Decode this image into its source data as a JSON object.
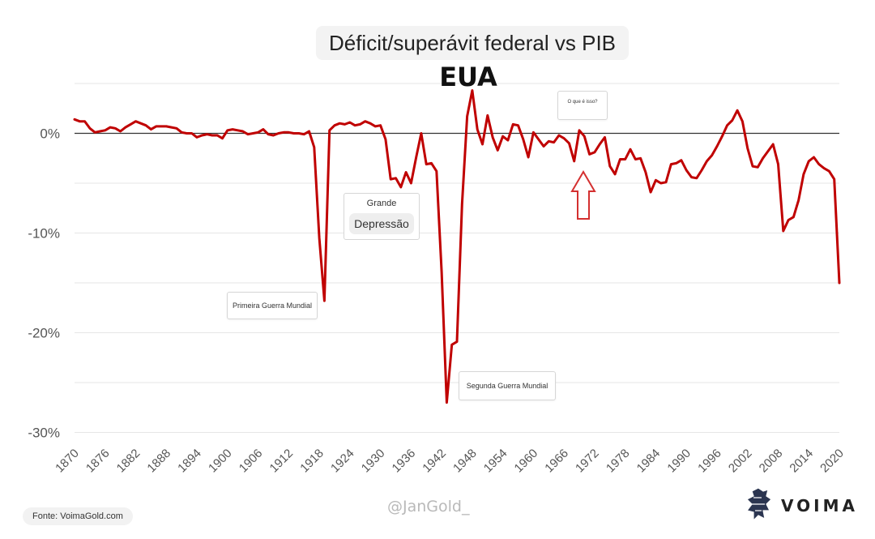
{
  "chart_data": {
    "type": "line",
    "title": "Déficit/superávit federal vs PIB",
    "subtitle": "EUA",
    "xlim": [
      1870,
      2020
    ],
    "ylim": [
      -30,
      5
    ],
    "y_ticks": [
      0,
      -10,
      -20,
      -30
    ],
    "y_tick_labels": [
      "0%",
      "-10%",
      "-20%",
      "-30%"
    ],
    "x_ticks": [
      1870,
      1876,
      1882,
      1888,
      1894,
      1900,
      1906,
      1912,
      1918,
      1924,
      1930,
      1936,
      1942,
      1948,
      1954,
      1960,
      1966,
      1972,
      1978,
      1984,
      1990,
      1996,
      2002,
      2008,
      2014,
      2020
    ],
    "x_tick_labels": [
      "1870",
      "1876",
      "1882",
      "1888",
      "1894",
      "1900",
      "1906",
      "1912",
      "1918",
      "1924",
      "1930",
      "1936",
      "1942",
      "1948",
      "1954",
      "1960",
      "1966",
      "1972",
      "1978",
      "1984",
      "1990",
      "1996",
      "2002",
      "2008",
      "2014",
      "2020"
    ],
    "grid": "horizontal",
    "line_color": "#c00000",
    "series": [
      {
        "x": [
          1870,
          1871,
          1872,
          1873,
          1874,
          1875,
          1876,
          1877,
          1878,
          1879,
          1880,
          1881,
          1882,
          1883,
          1884,
          1885,
          1886,
          1887,
          1888,
          1889,
          1890,
          1891,
          1892,
          1893,
          1894,
          1895,
          1896,
          1897,
          1898,
          1899,
          1900,
          1901,
          1902,
          1903,
          1904,
          1905,
          1906,
          1907,
          1908,
          1909,
          1910,
          1911,
          1912,
          1913,
          1914,
          1915,
          1916,
          1917,
          1918,
          1919,
          1920,
          1921,
          1922,
          1923,
          1924,
          1925,
          1926,
          1927,
          1928,
          1929,
          1930,
          1931,
          1932,
          1933,
          1934,
          1935,
          1936,
          1937,
          1938,
          1939,
          1940,
          1941,
          1942,
          1943,
          1944,
          1945,
          1946,
          1947,
          1948,
          1949,
          1950,
          1951,
          1952,
          1953,
          1954,
          1955,
          1956,
          1957,
          1958,
          1959,
          1960,
          1961,
          1962,
          1963,
          1964,
          1965,
          1966,
          1967,
          1968,
          1969,
          1970,
          1971,
          1972,
          1973,
          1974,
          1975,
          1976,
          1977,
          1978,
          1979,
          1980,
          1981,
          1982,
          1983,
          1984,
          1985,
          1986,
          1987,
          1988,
          1989,
          1990,
          1991,
          1992,
          1993,
          1994,
          1995,
          1996,
          1997,
          1998,
          1999,
          2000,
          2001,
          2002,
          2003,
          2004,
          2005,
          2006,
          2007,
          2008,
          2009,
          2010,
          2011,
          2012,
          2013,
          2014,
          2015,
          2016,
          2017,
          2018,
          2019,
          2020
        ],
        "values": [
          1.4,
          1.2,
          1.2,
          0.5,
          0.1,
          0.2,
          0.3,
          0.6,
          0.5,
          0.2,
          0.6,
          0.9,
          1.2,
          1.0,
          0.8,
          0.4,
          0.7,
          0.7,
          0.7,
          0.6,
          0.5,
          0.1,
          0.0,
          0.0,
          -0.4,
          -0.2,
          -0.1,
          -0.2,
          -0.2,
          -0.5,
          0.3,
          0.4,
          0.3,
          0.2,
          -0.1,
          0.0,
          0.1,
          0.4,
          -0.1,
          -0.2,
          0.0,
          0.1,
          0.1,
          0.0,
          0.0,
          -0.1,
          0.2,
          -1.4,
          -10.5,
          -16.8,
          0.3,
          0.8,
          1.0,
          0.9,
          1.1,
          0.8,
          0.9,
          1.2,
          1.0,
          0.7,
          0.8,
          -0.6,
          -4.6,
          -4.5,
          -5.4,
          -3.9,
          -5.0,
          -2.4,
          0.0,
          -3.1,
          -3.0,
          -3.8,
          -13.9,
          -27.0,
          -21.2,
          -20.9,
          -7.1,
          1.7,
          4.3,
          0.4,
          -1.1,
          1.8,
          -0.4,
          -1.7,
          -0.3,
          -0.7,
          0.9,
          0.8,
          -0.6,
          -2.4,
          0.1,
          -0.6,
          -1.3,
          -0.8,
          -0.9,
          -0.2,
          -0.5,
          -1.0,
          -2.8,
          0.3,
          -0.3,
          -2.1,
          -1.9,
          -1.1,
          -0.4,
          -3.3,
          -4.1,
          -2.6,
          -2.6,
          -1.6,
          -2.6,
          -2.5,
          -3.9,
          -5.9,
          -4.7,
          -5.0,
          -4.9,
          -3.1,
          -3.0,
          -2.7,
          -3.7,
          -4.4,
          -4.5,
          -3.7,
          -2.8,
          -2.2,
          -1.3,
          -0.3,
          0.8,
          1.3,
          2.3,
          1.2,
          -1.5,
          -3.3,
          -3.4,
          -2.5,
          -1.8,
          -1.1,
          -3.1,
          -9.8,
          -8.7,
          -8.4,
          -6.7,
          -4.1,
          -2.8,
          -2.4,
          -3.1,
          -3.5,
          -3.8,
          -4.6,
          -15.0
        ]
      }
    ],
    "annotations": {
      "ww1": "Primeira Guerra Mundial",
      "depression_line1": "Grande",
      "depression_line2": "Depressão",
      "ww2": "Segunda Guerra Mundial",
      "question": "O que é isso?"
    }
  },
  "footer": {
    "watermark": "@JanGold_",
    "source": "Fonte: VoimaGold.com",
    "logo": "VOIMA"
  }
}
